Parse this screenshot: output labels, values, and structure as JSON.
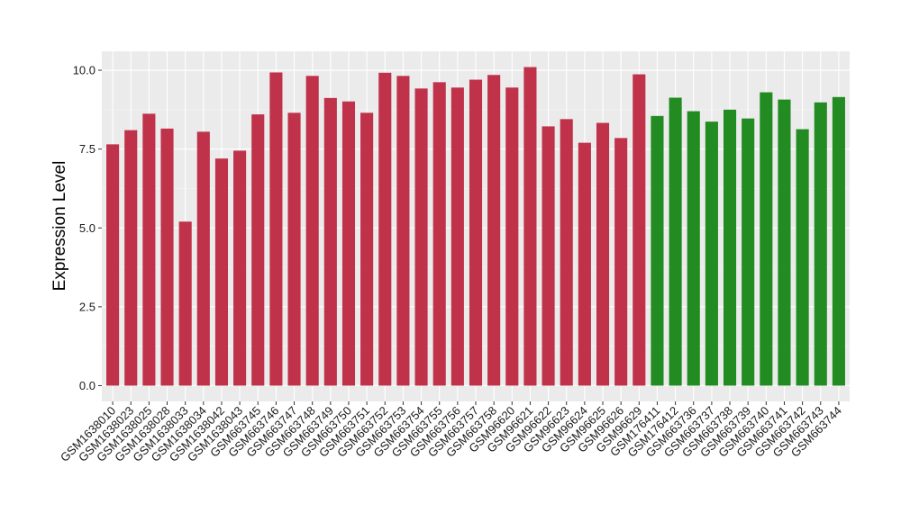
{
  "chart_data": {
    "type": "bar",
    "title": "",
    "xlabel": "",
    "ylabel": "Expression Level",
    "ylim": [
      -0.5,
      10.6
    ],
    "yticks": [
      0.0,
      2.5,
      5.0,
      7.5,
      10.0
    ],
    "ytick_labels": [
      "0.0",
      "2.5",
      "5.0",
      "7.5",
      "10.0"
    ],
    "grid": true,
    "legend": "none",
    "colors": {
      "panel_background": "#ebebeb",
      "grid_major": "#ffffff",
      "grid_minor": "#f5f5f5",
      "group_a": "#c0314a",
      "group_b": "#228b22"
    },
    "categories": [
      "GSM1638010",
      "GSM1638023",
      "GSM1638025",
      "GSM1638028",
      "GSM1638033",
      "GSM1638034",
      "GSM1638042",
      "GSM1638043",
      "GSM663745",
      "GSM663746",
      "GSM663747",
      "GSM663748",
      "GSM663749",
      "GSM663750",
      "GSM663751",
      "GSM663752",
      "GSM663753",
      "GSM663754",
      "GSM663755",
      "GSM663756",
      "GSM663757",
      "GSM663758",
      "GSM96620",
      "GSM96621",
      "GSM96622",
      "GSM96623",
      "GSM96624",
      "GSM96625",
      "GSM96626",
      "GSM96629",
      "GSM176411",
      "GSM176412",
      "GSM663736",
      "GSM663737",
      "GSM663738",
      "GSM663739",
      "GSM663740",
      "GSM663741",
      "GSM663742",
      "GSM663743",
      "GSM663744"
    ],
    "values": [
      7.65,
      8.1,
      8.62,
      8.15,
      5.2,
      8.05,
      7.2,
      7.45,
      8.6,
      9.93,
      8.65,
      9.82,
      9.12,
      9.01,
      8.65,
      9.92,
      9.82,
      9.42,
      9.62,
      9.45,
      9.7,
      9.85,
      9.45,
      10.1,
      8.22,
      8.45,
      7.7,
      8.33,
      7.85,
      9.87,
      8.55,
      9.13,
      8.7,
      8.37,
      8.75,
      8.47,
      9.3,
      9.07,
      8.13,
      8.98,
      9.15
    ],
    "bar_groups": [
      "a",
      "a",
      "a",
      "a",
      "a",
      "a",
      "a",
      "a",
      "a",
      "a",
      "a",
      "a",
      "a",
      "a",
      "a",
      "a",
      "a",
      "a",
      "a",
      "a",
      "a",
      "a",
      "a",
      "a",
      "a",
      "a",
      "a",
      "a",
      "a",
      "a",
      "b",
      "b",
      "b",
      "b",
      "b",
      "b",
      "b",
      "b",
      "b",
      "b",
      "b"
    ]
  }
}
